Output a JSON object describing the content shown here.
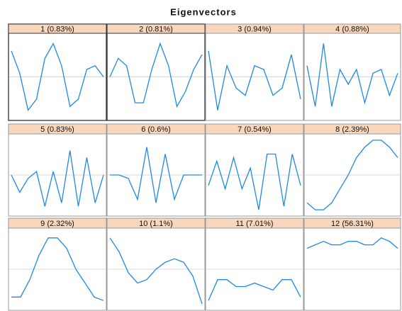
{
  "title": "Eigenvectors",
  "chart_data": [
    {
      "type": "line",
      "title": "1 (0.83%)",
      "values": [
        0.7,
        0.1,
        -0.9,
        -0.6,
        0.5,
        0.9,
        0.3,
        -0.8,
        -0.6,
        0.2,
        0.3,
        0.0
      ],
      "color": "#1e88e5",
      "ylim": [
        -1.1,
        1.1
      ],
      "yticks": [
        0
      ],
      "grid": true
    },
    {
      "type": "line",
      "title": "2 (0.81%)",
      "values": [
        0.0,
        0.5,
        0.3,
        -0.7,
        -0.7,
        0.2,
        0.9,
        0.3,
        -0.8,
        -0.4,
        0.2,
        0.6
      ],
      "color": "#1e88e5",
      "ylim": [
        -1.1,
        1.1
      ],
      "yticks": [
        0
      ],
      "grid": true
    },
    {
      "type": "line",
      "title": "3 (0.94%)",
      "values": [
        0.7,
        -0.9,
        0.3,
        -0.3,
        -0.5,
        0.3,
        0.2,
        -0.5,
        -0.3,
        0.6,
        -0.6
      ],
      "color": "#1e88e5",
      "ylim": [
        -1.1,
        1.1
      ],
      "yticks": [
        0
      ],
      "grid": true
    },
    {
      "type": "line",
      "title": "4 (0.88%)",
      "values": [
        0.3,
        -0.8,
        0.9,
        -0.8,
        0.2,
        -0.2,
        0.2,
        -0.7,
        0.1,
        0.2,
        -0.5,
        0.1
      ],
      "color": "#1e88e5",
      "ylim": [
        -1.1,
        1.1
      ],
      "yticks": [
        0
      ],
      "grid": true
    },
    {
      "type": "line",
      "title": "5 (0.83%)",
      "values": [
        0.0,
        -0.5,
        -0.1,
        0.1,
        -0.9,
        0.1,
        -0.8,
        0.7,
        -0.9,
        0.5,
        -0.8,
        0.0
      ],
      "color": "#1e88e5",
      "ylim": [
        -1.1,
        1.1
      ],
      "yticks": [
        0
      ],
      "grid": true
    },
    {
      "type": "line",
      "title": "6 (0.6%)",
      "values": [
        0.0,
        0.0,
        -0.1,
        -0.7,
        0.8,
        -0.8,
        0.6,
        -0.7,
        0.0,
        0.0,
        0.0
      ],
      "color": "#1e88e5",
      "ylim": [
        -1.1,
        1.1
      ],
      "yticks": [
        0
      ],
      "grid": true
    },
    {
      "type": "line",
      "title": "7 (0.54%)",
      "values": [
        -0.3,
        0.4,
        -0.4,
        0.5,
        -0.4,
        0.2,
        -1.0,
        0.6,
        0.6,
        -0.9,
        0.6,
        -0.3
      ],
      "color": "#1e88e5",
      "ylim": [
        -1.1,
        1.1
      ],
      "yticks": [
        0
      ],
      "grid": true
    },
    {
      "type": "line",
      "title": "8 (2.39%)",
      "values": [
        -0.8,
        -1.0,
        -1.0,
        -0.8,
        -0.4,
        0.0,
        0.5,
        0.8,
        1.0,
        1.0,
        0.8,
        0.5
      ],
      "color": "#1e88e5",
      "ylim": [
        -1.1,
        1.1
      ],
      "yticks": [
        0
      ],
      "grid": true
    },
    {
      "type": "line",
      "title": "9 (2.32%)",
      "values": [
        -0.8,
        -0.8,
        -0.3,
        0.4,
        0.9,
        0.9,
        0.6,
        0.0,
        -0.4,
        -0.8,
        -0.9
      ],
      "color": "#1e88e5",
      "ylim": [
        -1.1,
        1.1
      ],
      "yticks": [
        0
      ],
      "grid": true
    },
    {
      "type": "line",
      "title": "10 (1.1%)",
      "values": [
        0.9,
        0.5,
        -0.1,
        -0.4,
        -0.3,
        0.0,
        0.2,
        0.3,
        0.2,
        -0.2,
        -1.0
      ],
      "color": "#1e88e5",
      "ylim": [
        -1.1,
        1.1
      ],
      "yticks": [
        0
      ],
      "grid": true
    },
    {
      "type": "line",
      "title": "11 (7.01%)",
      "values": [
        -0.9,
        -0.3,
        -0.3,
        -0.5,
        -0.5,
        -0.4,
        -0.5,
        -0.6,
        -0.3,
        -0.3,
        -0.8
      ],
      "color": "#1e88e5",
      "ylim": [
        -1.1,
        1.1
      ],
      "yticks": [
        0
      ],
      "grid": true
    },
    {
      "type": "line",
      "title": "12 (56.31%)",
      "values": [
        0.6,
        0.7,
        0.8,
        0.7,
        0.7,
        0.8,
        0.8,
        0.7,
        0.7,
        0.9,
        0.8,
        0.6
      ],
      "color": "#1e88e5",
      "ylim": [
        -1.1,
        1.1
      ],
      "yticks": [
        0
      ],
      "grid": true
    }
  ]
}
